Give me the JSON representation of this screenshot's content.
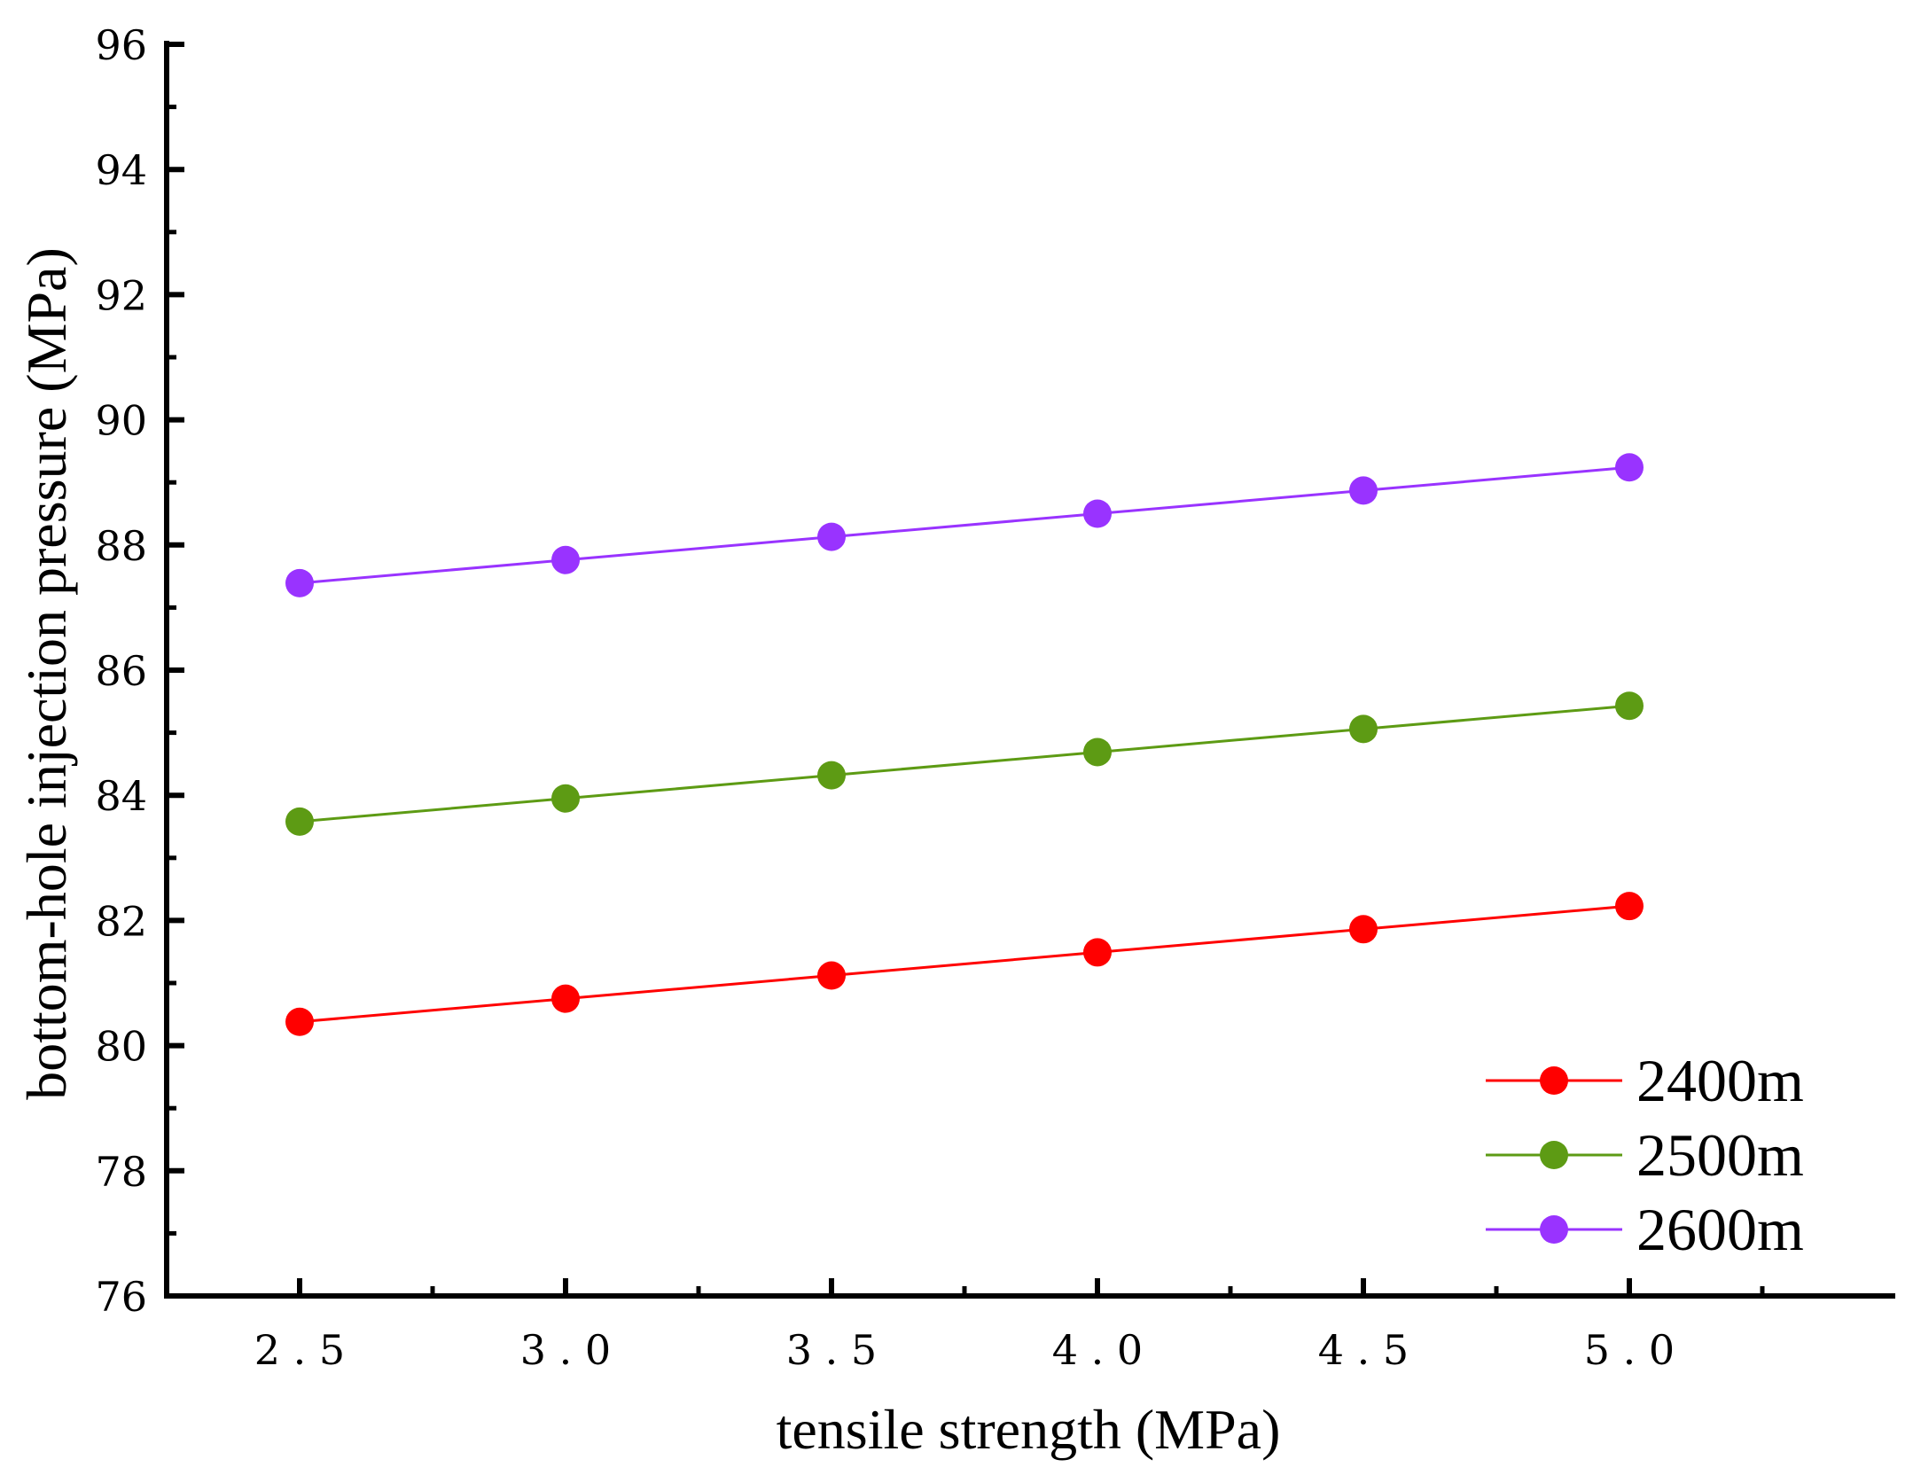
{
  "chart_data": {
    "type": "line",
    "title": "",
    "xlabel": "tensile strength (MPa)",
    "ylabel": "bottom-hole injection pressure (MPa)",
    "x": [
      2.5,
      3.0,
      3.5,
      4.0,
      4.5,
      5.0
    ],
    "x_tick_labels": [
      "2.5",
      "3.0",
      "3.5",
      "4.0",
      "4.5",
      "5.0"
    ],
    "xlim": [
      2.25,
      5.5
    ],
    "ylim": [
      76,
      96
    ],
    "y_ticks": [
      76,
      78,
      80,
      82,
      84,
      86,
      88,
      90,
      92,
      94,
      96
    ],
    "y_tick_labels": [
      "76",
      "78",
      "80",
      "82",
      "84",
      "86",
      "88",
      "90",
      "92",
      "94",
      "96"
    ],
    "grid": false,
    "legend_position": "bottom-right",
    "series": [
      {
        "name": "2400m",
        "color": "#ff0000",
        "values": [
          80.38,
          80.75,
          81.12,
          81.49,
          81.86,
          82.23
        ]
      },
      {
        "name": "2500m",
        "color": "#5d9b14",
        "values": [
          83.58,
          83.95,
          84.32,
          84.69,
          85.06,
          85.43
        ]
      },
      {
        "name": "2600m",
        "color": "#9933ff",
        "values": [
          87.39,
          87.76,
          88.13,
          88.5,
          88.87,
          89.24
        ]
      }
    ]
  }
}
